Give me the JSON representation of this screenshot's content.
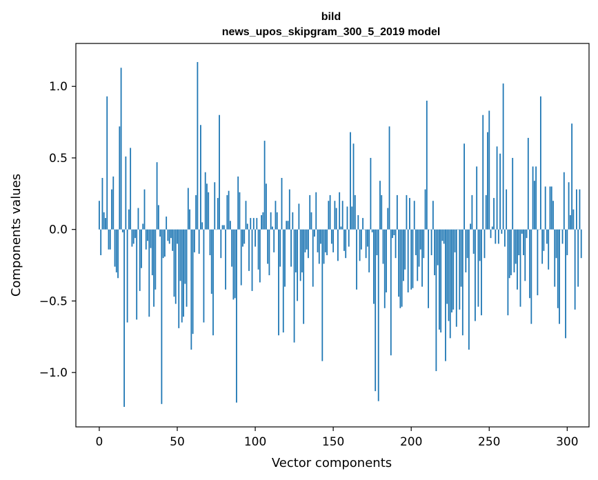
{
  "chart_data": {
    "type": "bar",
    "title": "bild",
    "subtitle": "news_upos_skipgram_300_5_2019 model",
    "xlabel": "Vector components",
    "ylabel": "Components values",
    "xlim": [
      -15,
      314
    ],
    "ylim": [
      -1.38,
      1.3
    ],
    "xticks": [
      0,
      50,
      100,
      150,
      200,
      250,
      300
    ],
    "yticks": [
      -1.0,
      -0.5,
      0.0,
      0.5,
      1.0
    ],
    "ytick_labels": [
      "−1.0",
      "−0.5",
      "0.0",
      "0.5",
      "1.0"
    ],
    "grid": false,
    "bar_color": "#1f77b4",
    "values": [
      0.2,
      -0.18,
      0.36,
      0.12,
      0.08,
      0.93,
      -0.14,
      -0.14,
      0.28,
      0.37,
      -0.26,
      -0.3,
      -0.34,
      0.72,
      1.13,
      -0.02,
      -1.24,
      0.51,
      -0.65,
      0.14,
      0.57,
      -0.12,
      -0.1,
      -0.06,
      -0.63,
      0.15,
      -0.43,
      -0.27,
      0.04,
      0.28,
      -0.14,
      -0.08,
      -0.61,
      -0.13,
      -0.32,
      -0.54,
      -0.42,
      0.47,
      0.17,
      -0.05,
      -1.22,
      -0.2,
      -0.19,
      0.09,
      -0.08,
      -0.1,
      -0.06,
      -0.15,
      -0.47,
      -0.52,
      -0.1,
      -0.69,
      -0.36,
      -0.65,
      -0.61,
      -0.38,
      -0.54,
      0.29,
      0.14,
      -0.84,
      -0.73,
      -0.16,
      0.24,
      1.17,
      -0.17,
      0.73,
      0.05,
      -0.65,
      0.4,
      0.32,
      0.26,
      -0.18,
      -0.45,
      -0.74,
      0.33,
      0.0,
      0.22,
      0.8,
      -0.2,
      0.03,
      0.03,
      -0.42,
      0.24,
      0.27,
      0.06,
      -0.26,
      -0.49,
      -0.48,
      -1.21,
      0.37,
      0.26,
      -0.39,
      -0.12,
      -0.1,
      0.2,
      0.04,
      -0.29,
      0.08,
      -0.43,
      0.08,
      -0.12,
      0.08,
      -0.28,
      -0.37,
      0.1,
      0.12,
      0.62,
      0.32,
      -0.24,
      -0.32,
      0.12,
      0.02,
      -0.16,
      0.2,
      0.12,
      -0.74,
      -0.26,
      0.36,
      -0.72,
      -0.4,
      0.06,
      0.06,
      0.28,
      -0.26,
      0.12,
      -0.79,
      -0.3,
      -0.5,
      0.18,
      -0.36,
      -0.3,
      -0.66,
      -0.16,
      -0.14,
      -0.2,
      0.24,
      0.12,
      -0.4,
      -0.05,
      0.26,
      -0.16,
      -0.24,
      -0.1,
      -0.92,
      -0.24,
      -0.16,
      -0.18,
      0.2,
      0.24,
      -0.1,
      -0.16,
      0.2,
      0.15,
      -0.22,
      0.26,
      0.02,
      0.2,
      -0.15,
      -0.2,
      0.16,
      -0.12,
      0.68,
      0.16,
      0.6,
      0.24,
      -0.42,
      0.1,
      -0.22,
      -0.14,
      0.08,
      0.0,
      -0.2,
      -0.12,
      -0.3,
      0.5,
      -0.02,
      -0.52,
      -1.13,
      -0.18,
      -1.2,
      0.34,
      0.24,
      -0.24,
      -0.55,
      -0.44,
      0.15,
      0.72,
      -0.88,
      -0.06,
      -0.04,
      -0.2,
      0.24,
      -0.47,
      -0.55,
      -0.54,
      -0.36,
      -0.28,
      0.24,
      -0.44,
      0.22,
      -0.42,
      -0.41,
      0.2,
      -0.18,
      -0.36,
      -0.26,
      -0.14,
      -0.4,
      -0.2,
      0.28,
      0.9,
      -0.55,
      0.0,
      -0.18,
      0.2,
      -0.32,
      -0.99,
      -0.25,
      -0.7,
      -0.72,
      -0.08,
      -0.1,
      -0.92,
      -0.52,
      -0.64,
      -0.76,
      -0.58,
      -0.56,
      -0.16,
      -0.68,
      0.0,
      -0.56,
      -0.4,
      -0.74,
      0.6,
      -0.3,
      -0.2,
      -0.84,
      0.04,
      0.24,
      -0.17,
      -0.64,
      0.44,
      -0.54,
      -0.22,
      -0.6,
      0.8,
      -0.2,
      0.24,
      0.68,
      0.83,
      -0.06,
      0.02,
      0.22,
      -0.1,
      0.58,
      -0.1,
      0.53,
      -0.03,
      1.02,
      -0.12,
      0.28,
      -0.6,
      -0.34,
      -0.32,
      0.5,
      -0.3,
      -0.24,
      -0.42,
      -0.18,
      -0.54,
      -0.03,
      -0.18,
      -0.36,
      -0.06,
      0.64,
      -0.48,
      -0.66,
      0.44,
      0.34,
      0.44,
      -0.46,
      0.0,
      0.93,
      -0.24,
      -0.15,
      0.3,
      -0.1,
      -0.28,
      0.3,
      0.3,
      0.2,
      -0.4,
      -0.2,
      -0.55,
      -0.66,
      0.0,
      -0.1,
      0.4,
      -0.76,
      -0.18,
      0.33,
      0.1,
      0.74,
      0.14,
      -0.56,
      0.28,
      -0.4,
      0.28,
      -0.2
    ]
  }
}
